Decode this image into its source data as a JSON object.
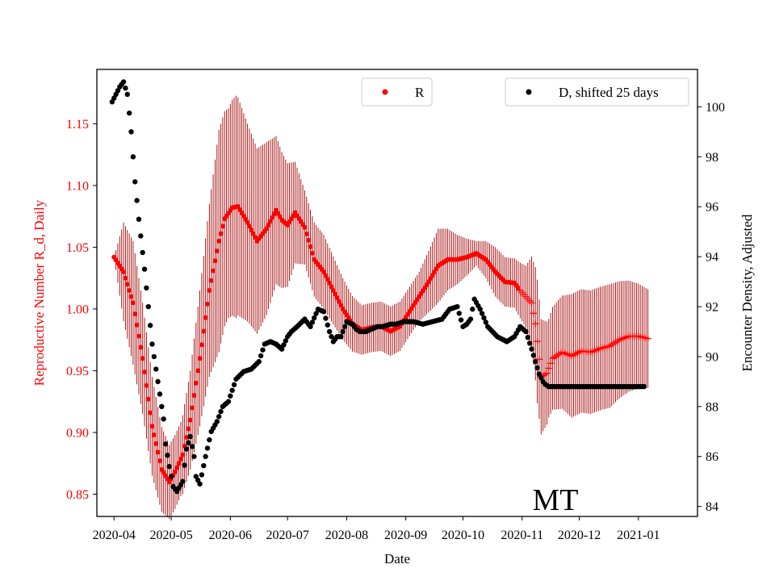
{
  "chart_data": {
    "type": "scatter",
    "state_label": "MT",
    "xlabel": "Date",
    "y_left_label": "Reproductive Number R_d, Daily",
    "y_right_label": "Encounter Density, Adjusted",
    "x_range_days": [
      -9,
      306
    ],
    "y_left_range": [
      0.832,
      1.194
    ],
    "y_right_range": [
      83.6,
      101.5
    ],
    "x_ticks": [
      {
        "day": 0,
        "label": "2020-04"
      },
      {
        "day": 30,
        "label": "2020-05"
      },
      {
        "day": 61,
        "label": "2020-06"
      },
      {
        "day": 91,
        "label": "2020-07"
      },
      {
        "day": 122,
        "label": "2020-08"
      },
      {
        "day": 153,
        "label": "2020-09"
      },
      {
        "day": 183,
        "label": "2020-10"
      },
      {
        "day": 214,
        "label": "2020-11"
      },
      {
        "day": 244,
        "label": "2020-12"
      },
      {
        "day": 275,
        "label": "2021-01"
      }
    ],
    "y_left_ticks": [
      {
        "v": 0.85,
        "label": "0.85"
      },
      {
        "v": 0.9,
        "label": "0.90"
      },
      {
        "v": 0.95,
        "label": "0.95"
      },
      {
        "v": 1.0,
        "label": "1.00"
      },
      {
        "v": 1.05,
        "label": "1.05"
      },
      {
        "v": 1.1,
        "label": "1.10"
      },
      {
        "v": 1.15,
        "label": "1.15"
      }
    ],
    "y_right_ticks": [
      {
        "v": 84,
        "label": "84"
      },
      {
        "v": 86,
        "label": "86"
      },
      {
        "v": 88,
        "label": "88"
      },
      {
        "v": 90,
        "label": "90"
      },
      {
        "v": 92,
        "label": "92"
      },
      {
        "v": 94,
        "label": "94"
      },
      {
        "v": 96,
        "label": "96"
      },
      {
        "v": 98,
        "label": "98"
      },
      {
        "v": 100,
        "label": "100"
      }
    ],
    "legend": [
      {
        "label": "R",
        "color": "#ff0000"
      },
      {
        "label": "D, shifted 25 days",
        "color": "#000000"
      }
    ],
    "colors": {
      "r_dot": "#ff0000",
      "r_err": "#a00000",
      "d_dot": "#000000",
      "left_axis": "#ff0000"
    },
    "r_series": {
      "name": "R",
      "dot_until_day": 212,
      "key_days": [
        0,
        5,
        10,
        15,
        20,
        25,
        29,
        32,
        36,
        40,
        45,
        50,
        55,
        58,
        62,
        65,
        70,
        75,
        80,
        85,
        88,
        91,
        95,
        100,
        105,
        110,
        115,
        120,
        125,
        130,
        135,
        140,
        145,
        150,
        155,
        160,
        165,
        170,
        175,
        180,
        185,
        190,
        195,
        200,
        205,
        210,
        213,
        216,
        219,
        221,
        224,
        227,
        230,
        235,
        240,
        245,
        250,
        255,
        260,
        265,
        270,
        275,
        280
      ],
      "key_values": [
        1.042,
        1.03,
        1.005,
        0.96,
        0.905,
        0.87,
        0.86,
        0.868,
        0.882,
        0.91,
        0.96,
        1.015,
        1.055,
        1.073,
        1.082,
        1.083,
        1.07,
        1.055,
        1.065,
        1.08,
        1.072,
        1.068,
        1.078,
        1.066,
        1.04,
        1.03,
        1.015,
        1.0,
        0.988,
        0.983,
        0.985,
        0.986,
        0.982,
        0.986,
        0.998,
        1.01,
        1.022,
        1.035,
        1.04,
        1.04,
        1.042,
        1.045,
        1.04,
        1.03,
        1.022,
        1.021,
        1.015,
        1.01,
        1.005,
        0.988,
        0.945,
        0.948,
        0.96,
        0.965,
        0.962,
        0.966,
        0.965,
        0.968,
        0.97,
        0.975,
        0.978,
        0.978,
        0.976
      ],
      "err_key_days": [
        0,
        5,
        10,
        20,
        29,
        35,
        40,
        45,
        50,
        55,
        60,
        64,
        70,
        75,
        80,
        85,
        91,
        100,
        110,
        120,
        130,
        140,
        150,
        160,
        170,
        180,
        190,
        200,
        210,
        216,
        222,
        228,
        240,
        260,
        280
      ],
      "err_key_values": [
        0.0,
        0.04,
        0.05,
        0.04,
        0.03,
        0.03,
        0.04,
        0.055,
        0.07,
        0.09,
        0.085,
        0.09,
        0.08,
        0.075,
        0.07,
        0.06,
        0.05,
        0.03,
        0.03,
        0.025,
        0.02,
        0.02,
        0.02,
        0.02,
        0.03,
        0.02,
        0.01,
        0.02,
        0.02,
        0.025,
        0.05,
        0.04,
        0.05,
        0.05,
        0.04
      ]
    },
    "d_series": {
      "name": "D, shifted 25 days",
      "start_day": -1,
      "end_day": 278,
      "key_days": [
        -1,
        3,
        5,
        7,
        9,
        11,
        13,
        16,
        18,
        20,
        23,
        26,
        27,
        29,
        31,
        33,
        36,
        38,
        40,
        42,
        43,
        45,
        48,
        51,
        54,
        57,
        60,
        64,
        68,
        72,
        76,
        79,
        82,
        85,
        88,
        91,
        93,
        96,
        100,
        103,
        107,
        110,
        113,
        115,
        117,
        119,
        122,
        125,
        127,
        129,
        132,
        135,
        138,
        141,
        145,
        148,
        152,
        157,
        162,
        167,
        172,
        176,
        180,
        183,
        185,
        187,
        189,
        192,
        196,
        201,
        206,
        210,
        213,
        216,
        219,
        221,
        223,
        225,
        226,
        228,
        231,
        240,
        255,
        278
      ],
      "key_values": [
        100.2,
        100.8,
        101.0,
        100.5,
        99.0,
        97.0,
        95.5,
        93.5,
        92.0,
        90.5,
        89.0,
        87.5,
        86.5,
        85.6,
        84.8,
        84.6,
        85.0,
        86.3,
        86.8,
        86.0,
        85.2,
        84.9,
        86.0,
        87.0,
        87.4,
        88.0,
        88.2,
        89.1,
        89.4,
        89.5,
        89.8,
        90.5,
        90.6,
        90.5,
        90.3,
        90.8,
        91.0,
        91.2,
        91.5,
        91.2,
        91.9,
        91.8,
        91.0,
        90.6,
        90.8,
        90.8,
        91.4,
        91.3,
        91.1,
        91.0,
        91.0,
        91.1,
        91.2,
        91.2,
        91.3,
        91.3,
        91.4,
        91.4,
        91.3,
        91.4,
        91.5,
        91.9,
        92.0,
        91.2,
        91.3,
        91.5,
        92.3,
        91.9,
        91.2,
        90.8,
        90.6,
        90.8,
        91.2,
        91.0,
        90.3,
        89.8,
        89.3,
        89.0,
        88.9,
        88.8,
        88.8,
        88.8,
        88.8,
        88.8
      ]
    }
  }
}
